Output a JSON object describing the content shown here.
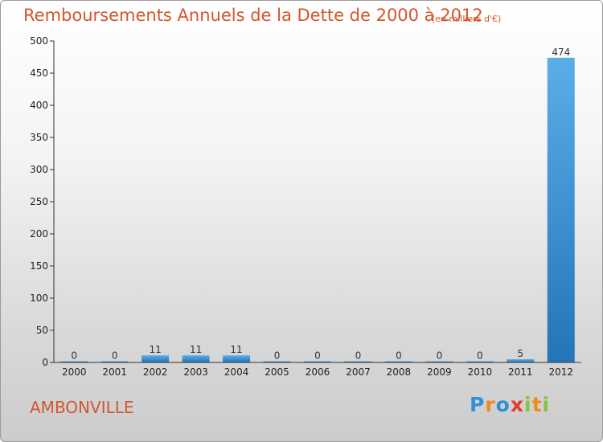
{
  "header": {
    "title": "Remboursements Annuels de la Dette de 2000 à 2012",
    "subtitle": "(en milliers d'€)"
  },
  "footer": {
    "commune": "AMBONVILLE",
    "logo": {
      "letters": [
        "P",
        "r",
        "o",
        "x",
        "i",
        "t",
        "i"
      ],
      "colors": [
        "#2f8fd8",
        "#f08a1c",
        "#2f8fd8",
        "#e23a2f",
        "#84c341",
        "#f08a1c",
        "#84c341"
      ]
    }
  },
  "chart_data": {
    "type": "bar",
    "categories": [
      "2000",
      "2001",
      "2002",
      "2003",
      "2004",
      "2005",
      "2006",
      "2007",
      "2008",
      "2009",
      "2010",
      "2011",
      "2012"
    ],
    "values": [
      0,
      0,
      11,
      11,
      11,
      0,
      0,
      0,
      0,
      0,
      0,
      5,
      474
    ],
    "data_labels": [
      "0",
      "0",
      "11",
      "11",
      "11",
      "0",
      "0",
      "0",
      "0",
      "0",
      "0",
      "5",
      "474"
    ],
    "ylim": [
      0,
      500
    ],
    "yticks": [
      0,
      50,
      100,
      150,
      200,
      250,
      300,
      350,
      400,
      450,
      500
    ],
    "ytick_labels": [
      "0",
      "50",
      "100",
      "150",
      "200",
      "250",
      "300",
      "350",
      "400",
      "450",
      "500"
    ],
    "xlabel": "",
    "ylabel": "",
    "grid": false,
    "colors": {
      "bar_top": "#5aaee8",
      "bar_bottom": "#2474b8",
      "axis": "#333333"
    }
  }
}
